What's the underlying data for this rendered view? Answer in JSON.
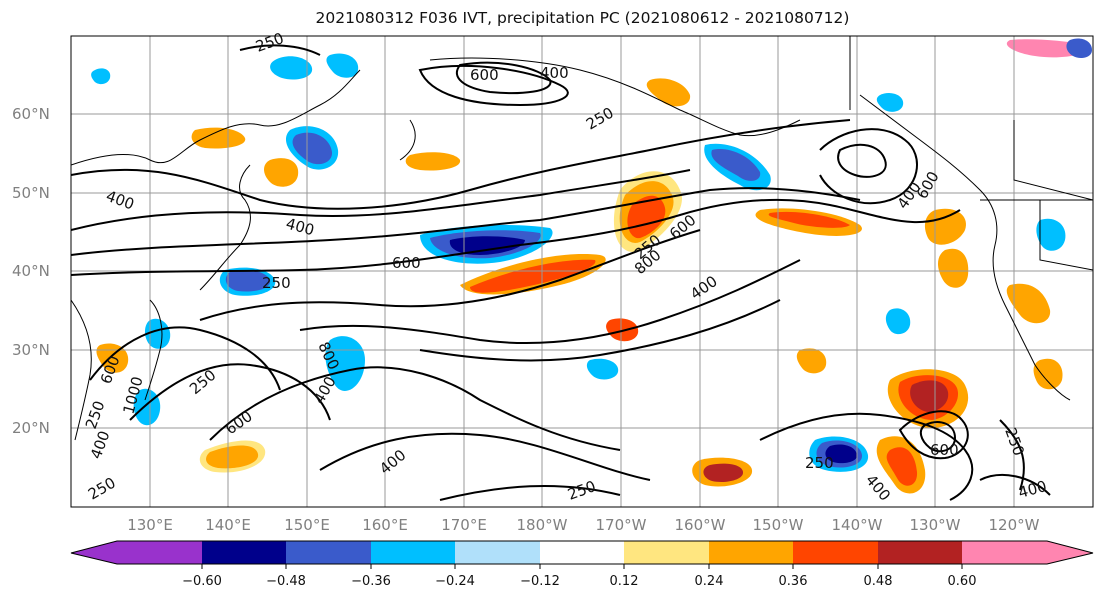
{
  "title": "2021080312 F036 IVT, precipitation PC (2021080612 - 2021080712)",
  "map": {
    "lat_labels": [
      "60°N",
      "50°N",
      "40°N",
      "30°N",
      "20°N"
    ],
    "lon_labels": [
      "130°E",
      "140°E",
      "150°E",
      "160°E",
      "170°E",
      "180°W",
      "170°W",
      "160°W",
      "150°W",
      "140°W",
      "130°W",
      "120°W"
    ],
    "contour_labels": [
      "250",
      "600",
      "400",
      "250",
      "400",
      "400",
      "250",
      "600",
      "800",
      "600",
      "400",
      "250",
      "800",
      "400",
      "600",
      "400",
      "400",
      "250",
      "600",
      "1000",
      "600",
      "250",
      "400",
      "250",
      "400",
      "250",
      "600",
      "250",
      "400",
      "250"
    ]
  },
  "colorbar": {
    "colors": [
      "#9932cc",
      "#00008b",
      "#3a5bcb",
      "#00bfff",
      "#b0e0fa",
      "#ffffff",
      "#ffe680",
      "#ffa500",
      "#ff4500",
      "#b22222",
      "#ff85b0"
    ],
    "tick_labels": [
      "−0.60",
      "−0.48",
      "−0.36",
      "−0.24",
      "−0.12",
      "0.12",
      "0.24",
      "0.36",
      "0.48",
      "0.60"
    ]
  }
}
